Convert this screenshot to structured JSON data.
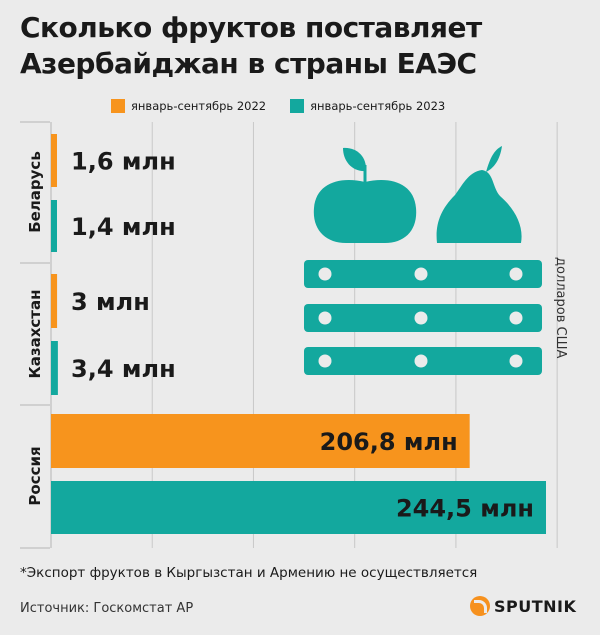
{
  "title_line1": "Сколько фруктов поставляет",
  "title_line2": "Азербайджан в страны ЕАЭС",
  "unit_label": "долларов США",
  "footnote": "*Экспорт фруктов в Кыргызстан и Армению не осуществляется",
  "source": "Источник: Госкомстат АР",
  "logo_text": "SPUTNIK",
  "colors": {
    "series_2022": "#f7941d",
    "series_2023": "#13a89e",
    "background": "#ebebeb"
  },
  "chart_data": {
    "type": "bar",
    "orientation": "horizontal",
    "categories": [
      "Беларусь",
      "Казахстан",
      "Россия"
    ],
    "series": [
      {
        "name": "январь-сентябрь 2022",
        "values": [
          1.6,
          3,
          206.8
        ],
        "labels": [
          "1,6 млн",
          "3 млн",
          "206,8 млн"
        ]
      },
      {
        "name": "январь-сентябрь 2023",
        "values": [
          1.4,
          3.4,
          244.5
        ],
        "labels": [
          "1,4 млн",
          "3,4 млн",
          "244,5 млн"
        ]
      }
    ],
    "xlim": [
      0,
      250
    ],
    "grid": true,
    "legend": "top"
  },
  "illustration": [
    "apple-icon",
    "pear-icon",
    "crate-icon"
  ]
}
